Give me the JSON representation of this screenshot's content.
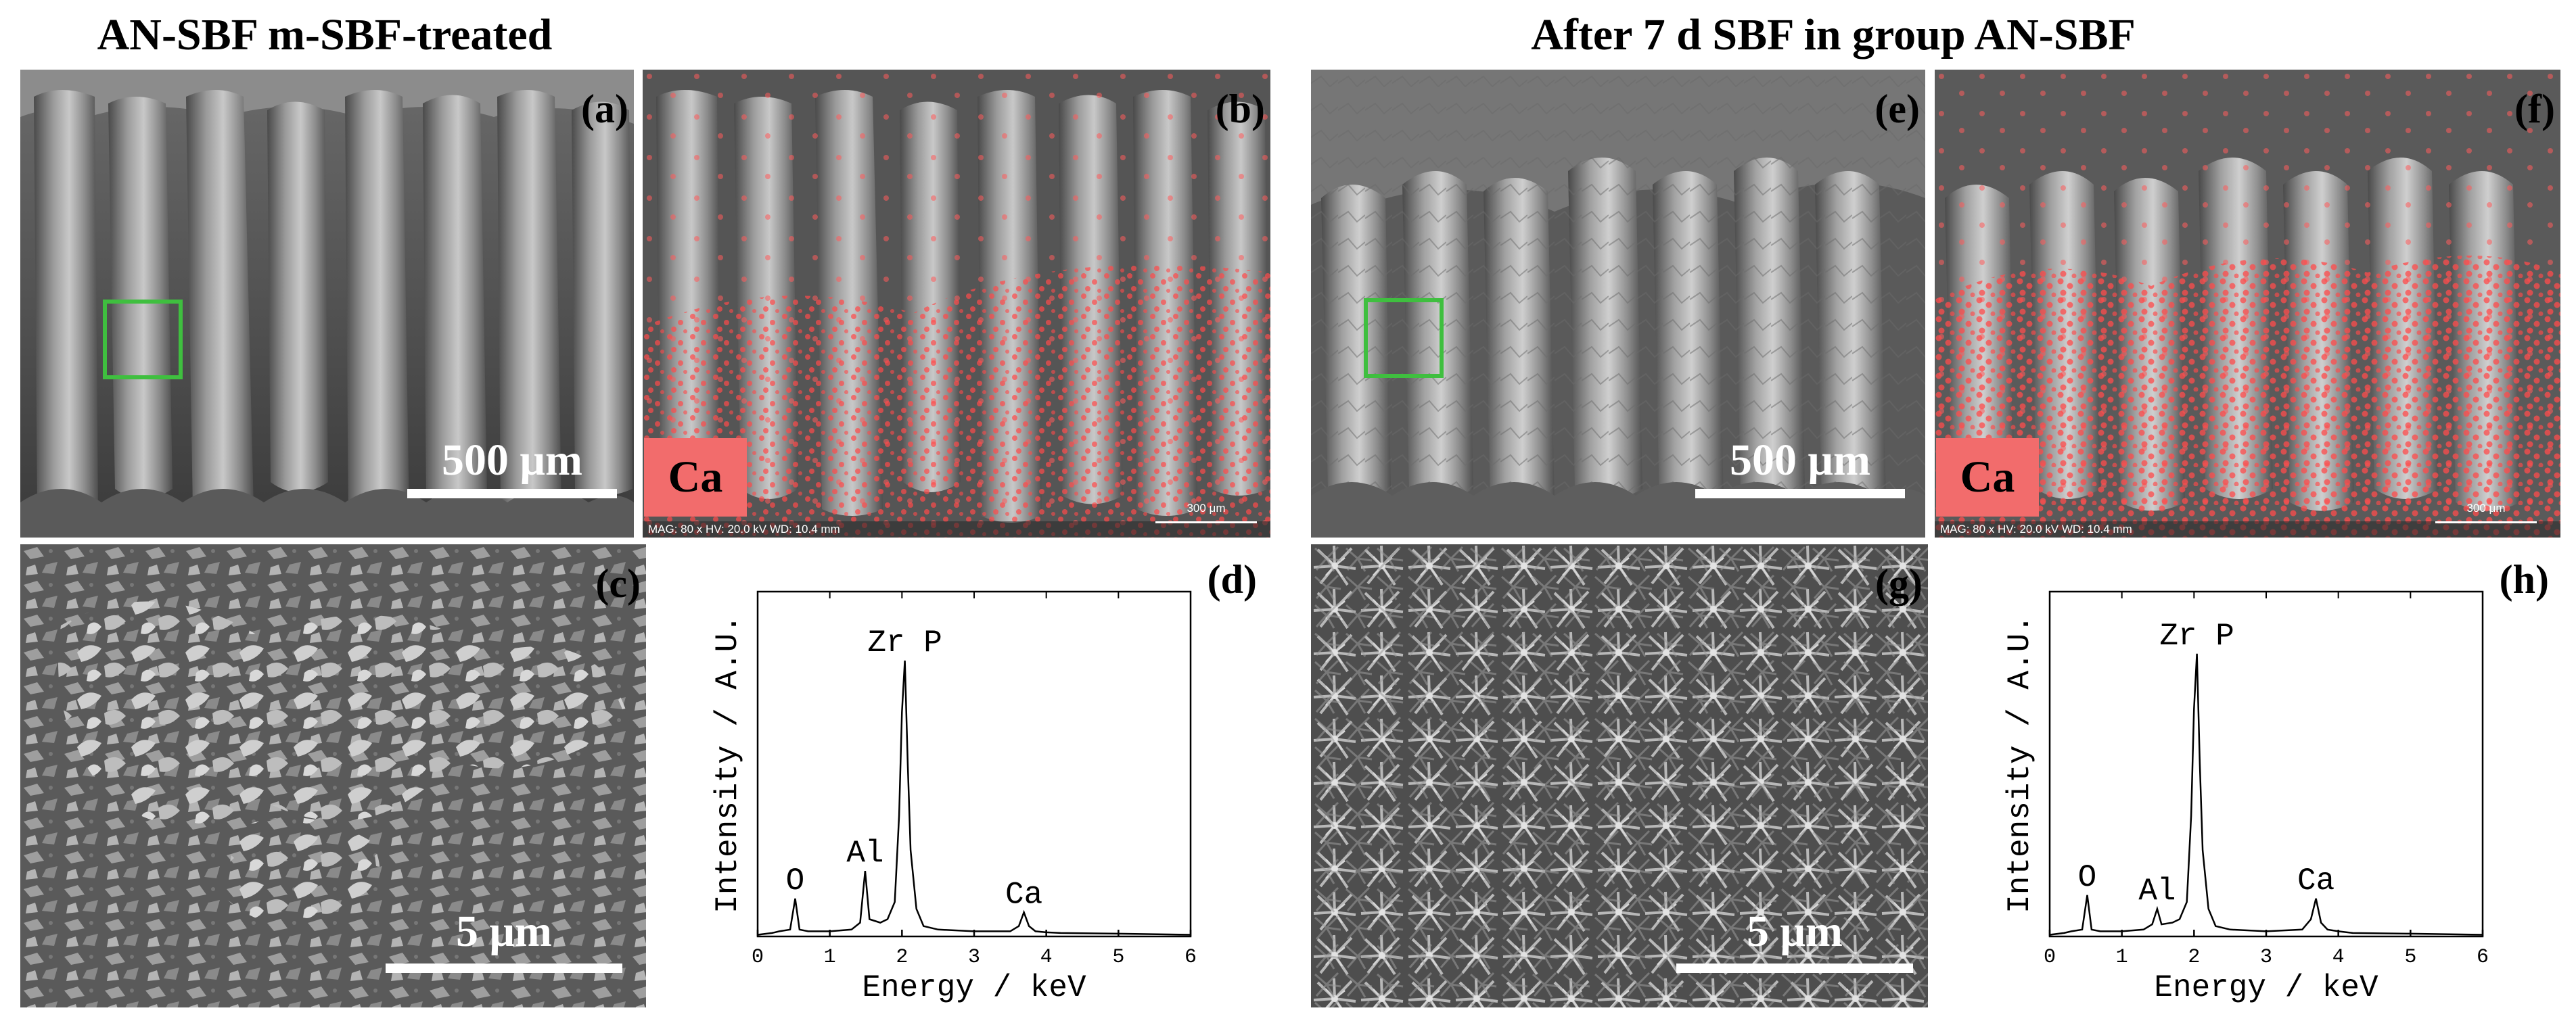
{
  "groups": {
    "left_title": "AN-SBF m-SBF-treated",
    "right_title": "After 7 d SBF in group AN-SBF"
  },
  "panels": {
    "a": {
      "label": "(a)",
      "scale": "500 μm"
    },
    "b": {
      "label": "(b)",
      "element": "Ca",
      "meta": "MAG: 80 x  HV: 20.0 kV  WD: 10.4 mm",
      "scale": "300 μm"
    },
    "c": {
      "label": "(c)",
      "scale": "5 μm"
    },
    "d": {
      "label": "(d)"
    },
    "e": {
      "label": "(e)",
      "scale": "500 μm"
    },
    "f": {
      "label": "(f)",
      "element": "Ca",
      "meta": "MAG: 80 x  HV: 20.0 kV  WD: 10.4 mm",
      "scale": "300 μm"
    },
    "g": {
      "label": "(g)",
      "scale": "5 μm"
    },
    "h": {
      "label": "(h)"
    }
  },
  "chart_data": [
    {
      "panel": "d",
      "type": "line",
      "xlabel": "Energy / keV",
      "ylabel": "Intensity / A.U.",
      "xlim": [
        0,
        6
      ],
      "ylim": [
        0,
        100
      ],
      "xticks": [
        0,
        1,
        2,
        3,
        4,
        5,
        6
      ],
      "peaks": [
        {
          "label": "O",
          "x": 0.52,
          "y": 11
        },
        {
          "label": "Al",
          "x": 1.49,
          "y": 19
        },
        {
          "label": "Zr  P",
          "x": 2.04,
          "y": 80
        },
        {
          "label": "Ca",
          "x": 3.69,
          "y": 7
        }
      ],
      "series": [
        {
          "x": [
            0.0,
            0.2,
            0.3,
            0.45,
            0.52,
            0.58,
            0.7,
            1.0,
            1.3,
            1.42,
            1.49,
            1.55,
            1.7,
            1.8,
            1.9,
            1.96,
            2.0,
            2.04,
            2.08,
            2.12,
            2.2,
            2.3,
            2.5,
            3.0,
            3.5,
            3.62,
            3.69,
            3.76,
            3.85,
            4.0,
            4.2,
            5.0,
            6.0
          ],
          "y": [
            0.5,
            1,
            1.5,
            2,
            11,
            2,
            1.5,
            1.5,
            2,
            4,
            19,
            5,
            4,
            5,
            10,
            35,
            65,
            80,
            50,
            25,
            8,
            3,
            2,
            1.5,
            1.5,
            3,
            7,
            3,
            1.5,
            1.2,
            1,
            0.8,
            0.5
          ]
        }
      ]
    },
    {
      "panel": "h",
      "type": "line",
      "xlabel": "Energy / keV",
      "ylabel": "Intensity / A.U.",
      "xlim": [
        0,
        6
      ],
      "ylim": [
        0,
        100
      ],
      "xticks": [
        0,
        1,
        2,
        3,
        4,
        5,
        6
      ],
      "peaks": [
        {
          "label": "O",
          "x": 0.52,
          "y": 12
        },
        {
          "label": "Al",
          "x": 1.49,
          "y": 8
        },
        {
          "label": "Zr  P",
          "x": 2.04,
          "y": 82
        },
        {
          "label": "Ca",
          "x": 3.69,
          "y": 11
        }
      ],
      "series": [
        {
          "x": [
            0.0,
            0.2,
            0.3,
            0.45,
            0.52,
            0.58,
            0.7,
            1.0,
            1.3,
            1.42,
            1.49,
            1.55,
            1.7,
            1.8,
            1.9,
            1.96,
            2.0,
            2.04,
            2.08,
            2.12,
            2.2,
            2.3,
            2.5,
            3.0,
            3.5,
            3.62,
            3.69,
            3.76,
            3.85,
            4.0,
            4.2,
            5.0,
            6.0
          ],
          "y": [
            0.5,
            1,
            1.5,
            2,
            12,
            2,
            1.5,
            1.5,
            2,
            3.5,
            8,
            3.5,
            4,
            5,
            10,
            35,
            66,
            82,
            50,
            25,
            8,
            3,
            2,
            1.5,
            2,
            5,
            11,
            4,
            2,
            1.5,
            1,
            0.8,
            0.5
          ]
        }
      ]
    }
  ]
}
